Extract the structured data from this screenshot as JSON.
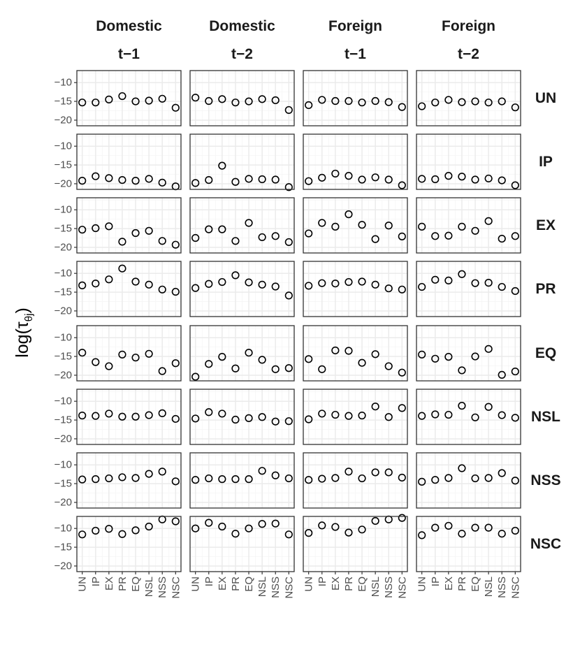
{
  "chart_data": {
    "type": "scatter",
    "facet_columns": [
      {
        "line1": "Domestic",
        "line2": "t−1"
      },
      {
        "line1": "Domestic",
        "line2": "t−2"
      },
      {
        "line1": "Foreign",
        "line2": "t−1"
      },
      {
        "line1": "Foreign",
        "line2": "t−2"
      }
    ],
    "facet_rows": [
      "UN",
      "IP",
      "EX",
      "PR",
      "EQ",
      "NSL",
      "NSS",
      "NSC"
    ],
    "categories": [
      "UN",
      "IP",
      "EX",
      "PR",
      "EQ",
      "NSL",
      "NSS",
      "NSC"
    ],
    "ylabel": {
      "main": "log(τ",
      "sub": "θj",
      "close": ")"
    },
    "yticks": [
      -10,
      -15,
      -20
    ],
    "ytick_labels": [
      "−10",
      "−15",
      "−20"
    ],
    "ylim": [
      -21.5,
      -6.8
    ],
    "grid": true,
    "marker": "open-circle",
    "colors": {
      "panel_border": "#333333",
      "grid_major": "#ebebeb",
      "grid_minor": "#f5f5f5",
      "point": "#000000",
      "text": "#1a1a1a",
      "tick_text": "#4d4d4d"
    },
    "values": {
      "UN": [
        [
          -15.3,
          -15.3,
          -14.5,
          -13.6,
          -15.0,
          -14.8,
          -14.3,
          -16.7
        ],
        [
          -14.0,
          -14.9,
          -14.4,
          -15.3,
          -15.0,
          -14.4,
          -14.7,
          -17.3
        ],
        [
          -16.0,
          -14.6,
          -14.9,
          -14.9,
          -15.3,
          -14.9,
          -15.2,
          -16.5
        ],
        [
          -16.3,
          -15.3,
          -14.6,
          -15.2,
          -15.0,
          -15.3,
          -15.0,
          -16.6
        ]
      ],
      "IP": [
        [
          -19.2,
          -18.0,
          -18.5,
          -19.0,
          -19.2,
          -18.7,
          -19.7,
          -20.7
        ],
        [
          -19.8,
          -19.0,
          -15.2,
          -19.5,
          -18.7,
          -18.8,
          -18.9,
          -20.9
        ],
        [
          -19.3,
          -18.4,
          -17.3,
          -17.9,
          -18.9,
          -18.3,
          -18.9,
          -20.4
        ],
        [
          -18.7,
          -18.8,
          -17.9,
          -18.1,
          -18.9,
          -18.6,
          -19.1,
          -20.4
        ]
      ],
      "EX": [
        [
          -15.3,
          -14.9,
          -14.4,
          -18.5,
          -16.2,
          -15.6,
          -18.3,
          -19.3
        ],
        [
          -17.5,
          -15.2,
          -15.2,
          -18.3,
          -13.5,
          -17.3,
          -17.0,
          -18.6
        ],
        [
          -16.3,
          -13.5,
          -14.5,
          -11.2,
          -14.0,
          -17.8,
          -14.2,
          -17.1
        ],
        [
          -14.5,
          -17.0,
          -16.9,
          -14.5,
          -15.6,
          -13.0,
          -17.7,
          -17.0
        ]
      ],
      "PR": [
        [
          -13.2,
          -12.7,
          -11.6,
          -8.7,
          -12.2,
          -13.0,
          -14.3,
          -14.9
        ],
        [
          -13.9,
          -12.8,
          -12.3,
          -10.5,
          -12.4,
          -13.0,
          -13.5,
          -15.9
        ],
        [
          -13.3,
          -12.6,
          -12.7,
          -12.3,
          -12.2,
          -13.0,
          -14.0,
          -14.3
        ],
        [
          -13.6,
          -11.7,
          -11.9,
          -10.2,
          -12.6,
          -12.5,
          -13.6,
          -14.7
        ]
      ],
      "EQ": [
        [
          -14.0,
          -16.5,
          -17.6,
          -14.5,
          -15.3,
          -14.3,
          -18.9,
          -16.8
        ],
        [
          -20.4,
          -17.0,
          -15.1,
          -18.2,
          -14.0,
          -15.9,
          -18.4,
          -18.1
        ],
        [
          -15.7,
          -18.4,
          -13.4,
          -13.5,
          -16.7,
          -14.4,
          -17.6,
          -19.3
        ],
        [
          -14.5,
          -15.6,
          -15.1,
          -18.7,
          -15.0,
          -13.0,
          -19.9,
          -19.0
        ]
      ],
      "NSL": [
        [
          -13.8,
          -13.9,
          -13.3,
          -14.1,
          -14.1,
          -13.7,
          -13.2,
          -14.7
        ],
        [
          -14.6,
          -12.9,
          -13.3,
          -14.9,
          -14.5,
          -14.2,
          -15.4,
          -15.3
        ],
        [
          -14.8,
          -13.3,
          -13.6,
          -13.9,
          -13.8,
          -11.4,
          -14.2,
          -11.8
        ],
        [
          -13.9,
          -13.5,
          -13.6,
          -11.2,
          -14.3,
          -11.5,
          -13.7,
          -14.4
        ]
      ],
      "NSS": [
        [
          -13.9,
          -13.8,
          -13.6,
          -13.3,
          -13.5,
          -12.4,
          -11.8,
          -14.4
        ],
        [
          -14.0,
          -13.6,
          -13.8,
          -13.8,
          -13.8,
          -11.6,
          -12.8,
          -13.6
        ],
        [
          -14.0,
          -13.7,
          -13.5,
          -11.8,
          -13.6,
          -12.0,
          -12.0,
          -13.4
        ],
        [
          -14.5,
          -14.0,
          -13.5,
          -10.9,
          -13.6,
          -13.5,
          -12.2,
          -14.2
        ]
      ],
      "NSC": [
        [
          -11.6,
          -10.6,
          -10.1,
          -11.5,
          -10.5,
          -9.5,
          -7.6,
          -8.1
        ],
        [
          -10.0,
          -8.5,
          -9.5,
          -11.4,
          -10.0,
          -8.8,
          -8.7,
          -11.6
        ],
        [
          -11.2,
          -9.2,
          -9.6,
          -11.1,
          -10.3,
          -8.0,
          -7.6,
          -7.2
        ],
        [
          -11.8,
          -9.8,
          -9.3,
          -11.4,
          -9.8,
          -9.8,
          -11.4,
          -10.6
        ]
      ]
    }
  }
}
